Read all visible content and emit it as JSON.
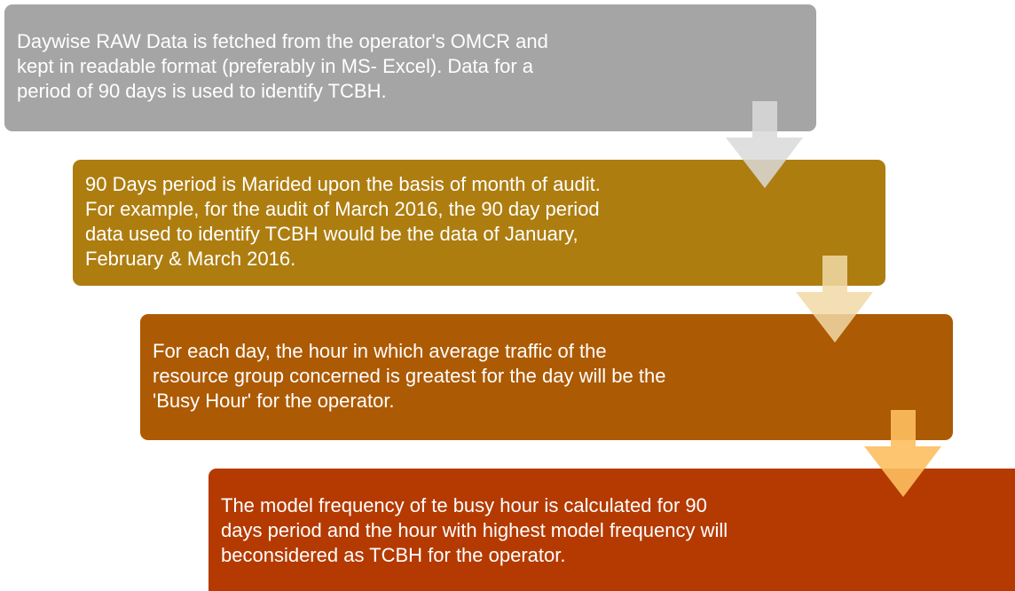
{
  "steps": [
    {
      "lines": [
        "Daywise RAW Data is fetched from the operator's OMCR and",
        "kept in readable format (preferably in MS- Excel). Data for a",
        "period of 90 days is used to identify TCBH."
      ]
    },
    {
      "lines": [
        "90 Days period is Marided upon the basis of month of audit.",
        "For example, for the audit of March 2016, the 90 day period",
        "data used to identify TCBH would be the data of January,",
        "February & March 2016."
      ]
    },
    {
      "lines": [
        "For each day, the hour in which average traffic of the",
        "resource group concerned is greatest for the day will be the",
        "'Busy Hour' for the operator."
      ]
    },
    {
      "lines": [
        "The model frequency of te busy hour is calculated for 90",
        "days period and the hour with highest model frequency will",
        "beconsidered as TCBH for the operator."
      ]
    }
  ]
}
